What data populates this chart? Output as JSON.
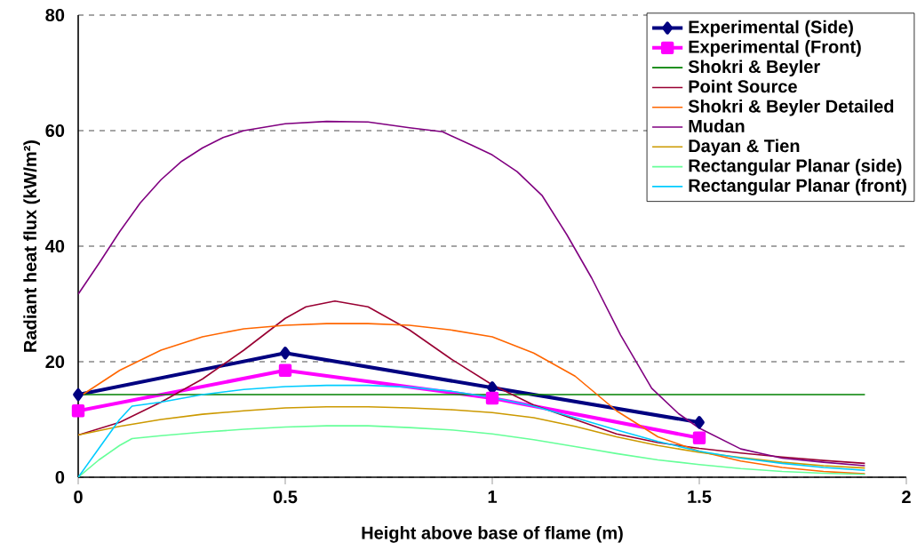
{
  "chart_data": {
    "type": "line",
    "xlabel": "Height above base of flame (m)",
    "ylabel": "Radiant heat flux (kW/m²)",
    "xlim": [
      0,
      2
    ],
    "ylim": [
      0,
      80
    ],
    "xticks": [
      0,
      0.5,
      1,
      1.5,
      2
    ],
    "yticks": [
      0,
      20,
      40,
      60,
      80
    ],
    "grid": "y",
    "legend": "top right",
    "series": [
      {
        "name": "Experimental (Side)",
        "color": "#000080",
        "marker": "diamond",
        "x": [
          0,
          0.5,
          1,
          1.5
        ],
        "values": [
          14.3,
          21.5,
          15.5,
          9.5
        ]
      },
      {
        "name": "Experimental (Front)",
        "color": "#ff00ff",
        "marker": "square",
        "x": [
          0,
          0.5,
          1,
          1.5
        ],
        "values": [
          11.5,
          18.5,
          13.7,
          6.8
        ]
      },
      {
        "name": "Shokri & Beyler",
        "color": "#008000",
        "x": [
          0,
          1.9
        ],
        "values": [
          14.3,
          14.3
        ]
      },
      {
        "name": "Point Source",
        "color": "#990033",
        "x": [
          0,
          0.1,
          0.2,
          0.3,
          0.4,
          0.5,
          0.55,
          0.62,
          0.7,
          0.8,
          0.9,
          1.0,
          1.1,
          1.2,
          1.3,
          1.4,
          1.5,
          1.6,
          1.7,
          1.8,
          1.9
        ],
        "values": [
          7.3,
          9.5,
          13,
          17,
          22,
          27.5,
          29.5,
          30.5,
          29.5,
          25.5,
          20.5,
          16,
          12.5,
          10,
          7.5,
          6,
          5,
          4.2,
          3.5,
          2.9,
          2.4
        ]
      },
      {
        "name": "Shokri & Beyler Detailed",
        "color": "#ff6600",
        "x": [
          0,
          0.1,
          0.2,
          0.3,
          0.4,
          0.5,
          0.6,
          0.7,
          0.8,
          0.9,
          1.0,
          1.1,
          1.2,
          1.3,
          1.4,
          1.5,
          1.6,
          1.7,
          1.8,
          1.9
        ],
        "values": [
          13.8,
          18.5,
          22,
          24.3,
          25.7,
          26.3,
          26.6,
          26.6,
          26.3,
          25.5,
          24.3,
          21.5,
          17.5,
          11.5,
          7,
          4.5,
          2.8,
          1.7,
          1.0,
          0.6
        ]
      },
      {
        "name": "Mudan",
        "color": "#800080",
        "x": [
          0,
          0.05,
          0.1,
          0.15,
          0.2,
          0.25,
          0.3,
          0.35,
          0.4,
          0.5,
          0.6,
          0.7,
          0.8,
          0.88,
          0.95,
          1.0,
          1.06,
          1.12,
          1.18,
          1.24,
          1.31,
          1.385,
          1.45,
          1.5,
          1.6,
          1.7,
          1.8,
          1.9
        ],
        "values": [
          31.7,
          37,
          42.5,
          47.5,
          51.5,
          54.7,
          57,
          58.8,
          60,
          61.2,
          61.6,
          61.5,
          60.5,
          59.8,
          57.5,
          55.8,
          52.9,
          48.8,
          42,
          34.5,
          24.6,
          15.4,
          11,
          8.5,
          4.9,
          3.3,
          2.6,
          2.0
        ]
      },
      {
        "name": "Dayan & Tien",
        "color": "#cc9900",
        "x": [
          0,
          0.1,
          0.2,
          0.3,
          0.4,
          0.5,
          0.6,
          0.7,
          0.8,
          0.9,
          1.0,
          1.1,
          1.2,
          1.3,
          1.4,
          1.5,
          1.6,
          1.7,
          1.8,
          1.9
        ],
        "values": [
          7.3,
          8.8,
          10,
          10.9,
          11.5,
          12,
          12.2,
          12.2,
          12,
          11.7,
          11.2,
          10.3,
          8.8,
          7.0,
          5.5,
          4.3,
          3.4,
          2.6,
          2.0,
          1.6
        ]
      },
      {
        "name": "Rectangular Planar (side)",
        "color": "#66ff99",
        "x": [
          0,
          0.05,
          0.1,
          0.13,
          0.2,
          0.3,
          0.4,
          0.5,
          0.6,
          0.7,
          0.8,
          0.9,
          1.0,
          1.1,
          1.2,
          1.3,
          1.4,
          1.5,
          1.6,
          1.7,
          1.8,
          1.9
        ],
        "values": [
          0,
          3,
          5.5,
          6.7,
          7.2,
          7.8,
          8.3,
          8.7,
          8.9,
          8.9,
          8.6,
          8.2,
          7.5,
          6.5,
          5.3,
          4.1,
          3.0,
          2.2,
          1.5,
          1.0,
          0.7,
          0.5
        ]
      },
      {
        "name": "Rectangular Planar (front)",
        "color": "#00ccff",
        "x": [
          0,
          0.05,
          0.1,
          0.13,
          0.2,
          0.3,
          0.4,
          0.5,
          0.6,
          0.7,
          0.8,
          0.9,
          1.0,
          1.1,
          1.2,
          1.3,
          1.4,
          1.5,
          1.6,
          1.7,
          1.8,
          1.9
        ],
        "values": [
          0,
          5,
          10,
          12.3,
          13,
          14.3,
          15.2,
          15.7,
          15.9,
          15.9,
          15.6,
          14.9,
          13.8,
          12.3,
          10.3,
          8.2,
          6.2,
          4.5,
          3.3,
          2.4,
          1.7,
          1.2
        ]
      }
    ]
  }
}
